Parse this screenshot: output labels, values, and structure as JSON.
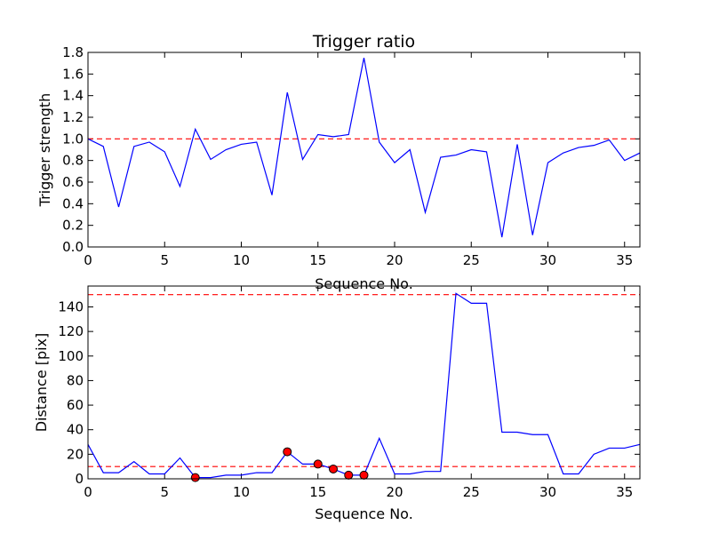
{
  "chart_data": [
    {
      "type": "line",
      "title": "Trigger ratio",
      "xlabel": "Sequence No.",
      "ylabel": "Trigger strength",
      "xlim": [
        0,
        36
      ],
      "ylim": [
        0,
        1.8
      ],
      "xticks": [
        0,
        5,
        10,
        15,
        20,
        25,
        30,
        35
      ],
      "xtick_labels": [
        "0",
        "5",
        "10",
        "15",
        "20",
        "25",
        "30",
        "35"
      ],
      "yticks": [
        0,
        0.2,
        0.4,
        0.6,
        0.8,
        1.0,
        1.2,
        1.4,
        1.6,
        1.8
      ],
      "ytick_labels": [
        "0.0",
        "0.2",
        "0.4",
        "0.6",
        "0.8",
        "1.0",
        "1.2",
        "1.4",
        "1.6",
        "1.8"
      ],
      "series": [
        {
          "name": "trigger strength",
          "color": "#0000ff",
          "x": [
            0,
            1,
            2,
            3,
            4,
            5,
            6,
            7,
            8,
            9,
            10,
            11,
            12,
            13,
            14,
            15,
            16,
            17,
            18,
            19,
            20,
            21,
            22,
            23,
            24,
            25,
            26,
            27,
            28,
            29,
            30,
            31,
            32,
            33,
            34,
            35,
            36
          ],
          "values": [
            1.0,
            0.93,
            0.37,
            0.93,
            0.97,
            0.88,
            0.56,
            1.09,
            0.81,
            0.9,
            0.95,
            0.97,
            0.48,
            1.43,
            0.81,
            1.04,
            1.02,
            1.04,
            1.75,
            0.97,
            0.78,
            0.9,
            0.32,
            0.83,
            0.85,
            0.9,
            0.88,
            0.09,
            0.95,
            0.11,
            0.78,
            0.87,
            0.92,
            0.94,
            0.99,
            0.8,
            0.87
          ]
        }
      ],
      "thresholds": [
        {
          "value": 1.0,
          "color": "#ff0000",
          "style": "dashed"
        }
      ]
    },
    {
      "type": "line",
      "title": "",
      "xlabel": "Sequence No.",
      "ylabel": "Distance [pix]",
      "xlim": [
        0,
        36
      ],
      "ylim": [
        0,
        157
      ],
      "xticks": [
        0,
        5,
        10,
        15,
        20,
        25,
        30,
        35
      ],
      "xtick_labels": [
        "0",
        "5",
        "10",
        "15",
        "20",
        "25",
        "30",
        "35"
      ],
      "yticks": [
        0,
        20,
        40,
        60,
        80,
        100,
        120,
        140
      ],
      "ytick_labels": [
        "0",
        "20",
        "40",
        "60",
        "80",
        "100",
        "120",
        "140"
      ],
      "series": [
        {
          "name": "distance",
          "color": "#0000ff",
          "x": [
            0,
            1,
            2,
            3,
            4,
            5,
            6,
            7,
            8,
            9,
            10,
            11,
            12,
            13,
            14,
            15,
            16,
            17,
            18,
            19,
            20,
            21,
            22,
            23,
            24,
            25,
            26,
            27,
            28,
            29,
            30,
            31,
            32,
            33,
            34,
            35,
            36
          ],
          "values": [
            28,
            5,
            5,
            14,
            4,
            4,
            17,
            1,
            1,
            3,
            3,
            5,
            5,
            22,
            12,
            12,
            8,
            3,
            3,
            33,
            4,
            4,
            6,
            6,
            151,
            143,
            143,
            38,
            38,
            36,
            36,
            4,
            4,
            20,
            25,
            25,
            28
          ]
        }
      ],
      "markers": {
        "color": "#ff0000",
        "x": [
          7,
          13,
          15,
          16,
          17,
          18
        ],
        "values": [
          1,
          22,
          12,
          8,
          3,
          3
        ]
      },
      "thresholds": [
        {
          "value": 150,
          "color": "#ff0000",
          "style": "dashed"
        },
        {
          "value": 10,
          "color": "#ff0000",
          "style": "dashed"
        }
      ]
    }
  ]
}
